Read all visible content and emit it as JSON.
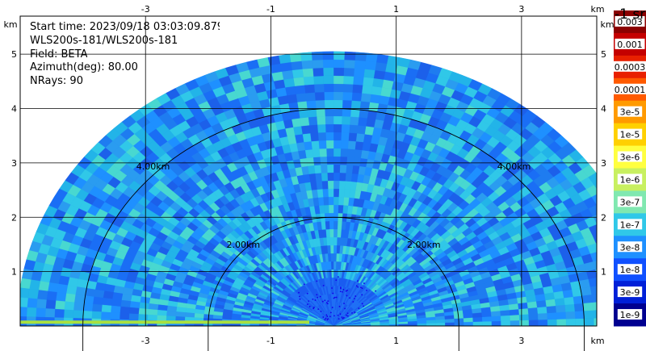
{
  "info": {
    "start_time": "Start time: 2023/09/18 03:03:09.879",
    "station": "WLS200s-181/WLS200s-181",
    "field": "Field: BETA",
    "azimuth": "Azimuth(deg): 80.00",
    "nrays": "NRays: 90"
  },
  "chart_data": {
    "type": "heatmap",
    "projection": "RHI polar sector",
    "x_unit": "km",
    "y_unit": "km",
    "x_ticks": [
      -3,
      -1,
      1,
      3
    ],
    "y_ticks": [
      1,
      2,
      3,
      4,
      5
    ],
    "xlim": [
      -5.0,
      4.2
    ],
    "ylim": [
      0,
      5.7
    ],
    "max_range_km": 5.05,
    "range_rings": [
      {
        "radius_km": 2.0,
        "label": "2.00km"
      },
      {
        "radius_km": 4.0,
        "label": "4.00km"
      }
    ],
    "colorbar": {
      "title": "-1 sr",
      "labels": [
        "0.003",
        "0.001",
        "0.0003",
        "0.0001",
        "3e-5",
        "1e-5",
        "3e-6",
        "1e-6",
        "3e-7",
        "1e-7",
        "3e-8",
        "1e-8",
        "3e-9",
        "1e-9"
      ],
      "colors": [
        "#8b0000",
        "#c40000",
        "#e82000",
        "#ff5a00",
        "#ff9a00",
        "#ffd000",
        "#ffff40",
        "#c8f060",
        "#80e8b0",
        "#30c8e8",
        "#1e90ff",
        "#1050ff",
        "#0020d8",
        "#000090"
      ]
    }
  }
}
